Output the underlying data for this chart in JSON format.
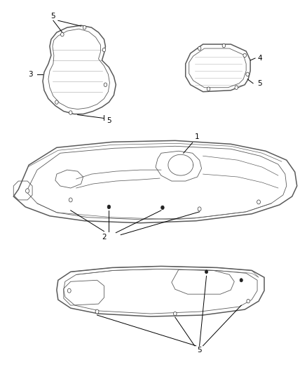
{
  "bg_color": "#ffffff",
  "line_color": "#5a5a5a",
  "label_color": "#000000",
  "fig_width": 4.38,
  "fig_height": 5.33,
  "dpi": 100,
  "lw_main": 1.1,
  "lw_thin": 0.6,
  "lw_label": 0.7,
  "dot_r": 0.004,
  "font_size": 7.5
}
